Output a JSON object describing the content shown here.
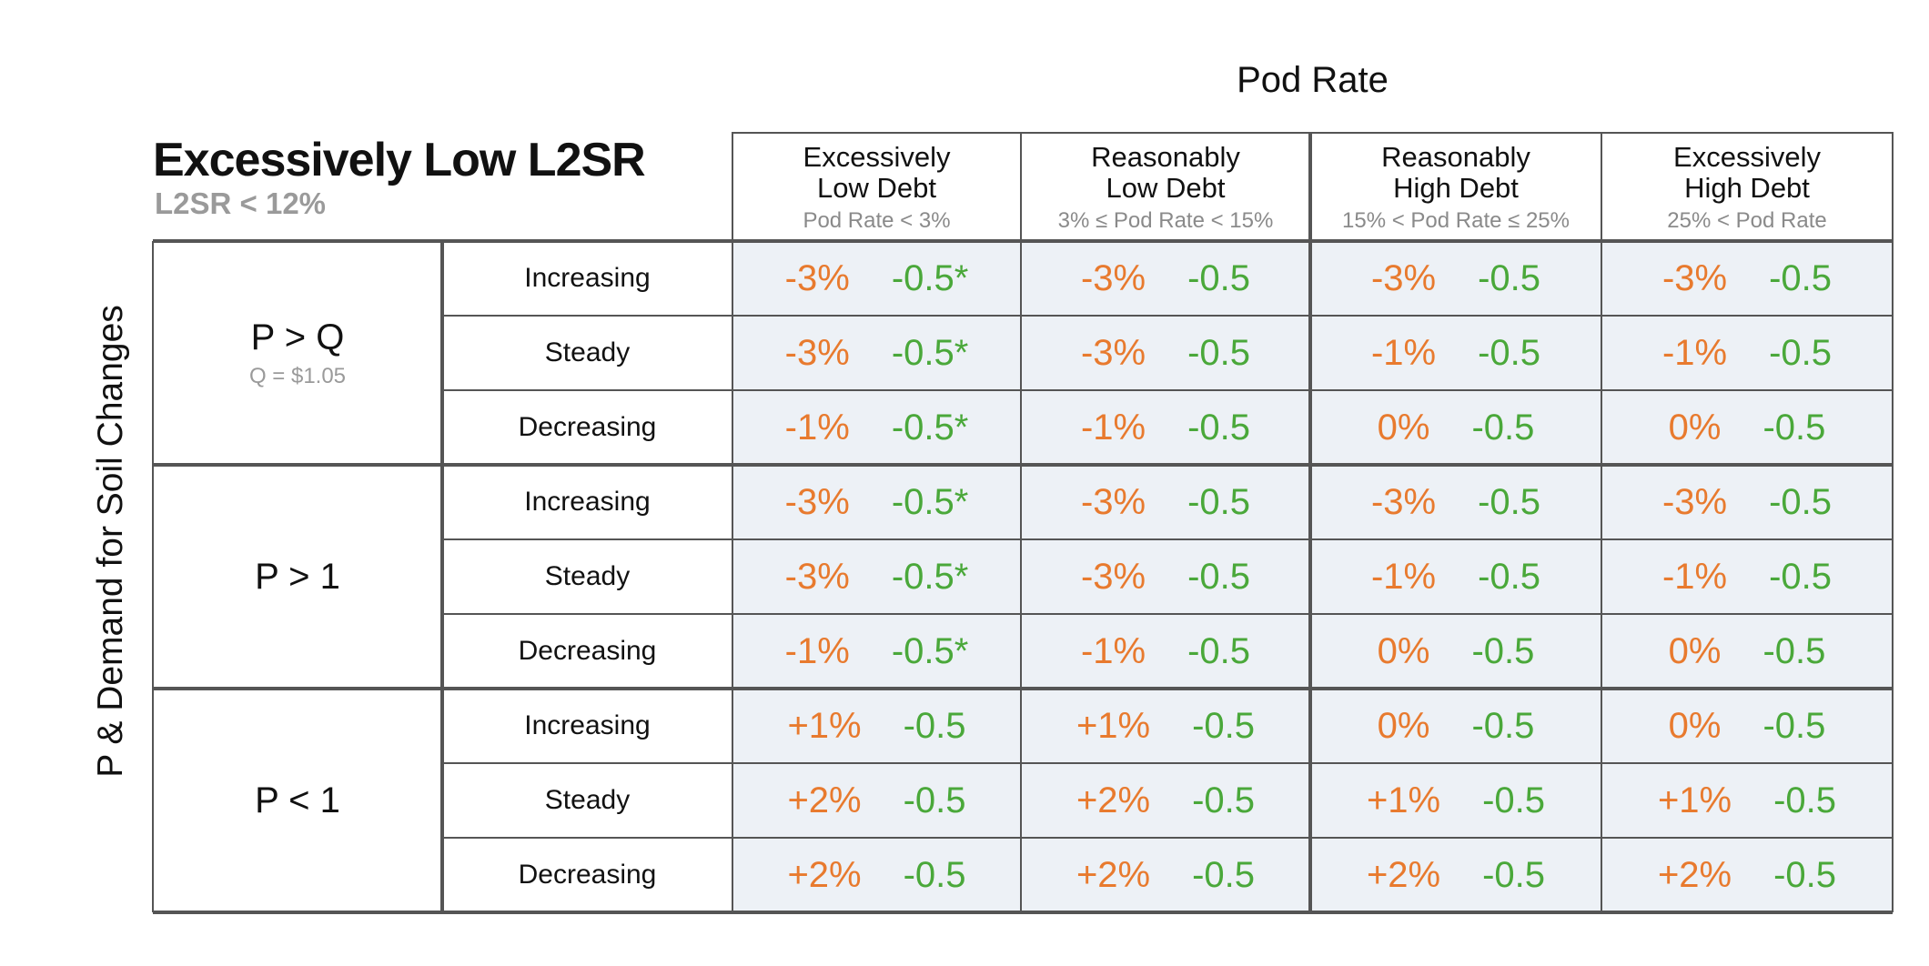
{
  "title": "Excessively Low L2SR",
  "subtitle": "L2SR < 12%",
  "column_axis_title": "Pod Rate",
  "row_axis_title": "P & Demand for Soil Changes",
  "colors": {
    "percent": "#e87a2e",
    "value": "#4aa83a",
    "cell_shade": "#edf1f6"
  },
  "chart_data": {
    "type": "table",
    "columns": [
      {
        "line1": "Excessively",
        "line2": "Low Debt",
        "condition": "Pod Rate < 3%"
      },
      {
        "line1": "Reasonably",
        "line2": "Low Debt",
        "condition": "3% ≤ Pod Rate < 15%"
      },
      {
        "line1": "Reasonably",
        "line2": "High Debt",
        "condition": "15% < Pod Rate ≤ 25%"
      },
      {
        "line1": "Excessively",
        "line2": "High Debt",
        "condition": "25% < Pod Rate"
      }
    ],
    "groups": [
      {
        "label": "P > Q",
        "sublabel": "Q = $1.05"
      },
      {
        "label": "P > 1",
        "sublabel": ""
      },
      {
        "label": "P < 1",
        "sublabel": ""
      }
    ],
    "rows": [
      {
        "group": 0,
        "trend": "Increasing",
        "cells": [
          [
            "-3%",
            "-0.5*"
          ],
          [
            "-3%",
            "-0.5"
          ],
          [
            "-3%",
            "-0.5"
          ],
          [
            "-3%",
            "-0.5"
          ]
        ]
      },
      {
        "group": 0,
        "trend": "Steady",
        "cells": [
          [
            "-3%",
            "-0.5*"
          ],
          [
            "-3%",
            "-0.5"
          ],
          [
            "-1%",
            "-0.5"
          ],
          [
            "-1%",
            "-0.5"
          ]
        ]
      },
      {
        "group": 0,
        "trend": "Decreasing",
        "cells": [
          [
            "-1%",
            "-0.5*"
          ],
          [
            "-1%",
            "-0.5"
          ],
          [
            "0%",
            "-0.5"
          ],
          [
            "0%",
            "-0.5"
          ]
        ]
      },
      {
        "group": 1,
        "trend": "Increasing",
        "cells": [
          [
            "-3%",
            "-0.5*"
          ],
          [
            "-3%",
            "-0.5"
          ],
          [
            "-3%",
            "-0.5"
          ],
          [
            "-3%",
            "-0.5"
          ]
        ]
      },
      {
        "group": 1,
        "trend": "Steady",
        "cells": [
          [
            "-3%",
            "-0.5*"
          ],
          [
            "-3%",
            "-0.5"
          ],
          [
            "-1%",
            "-0.5"
          ],
          [
            "-1%",
            "-0.5"
          ]
        ]
      },
      {
        "group": 1,
        "trend": "Decreasing",
        "cells": [
          [
            "-1%",
            "-0.5*"
          ],
          [
            "-1%",
            "-0.5"
          ],
          [
            "0%",
            "-0.5"
          ],
          [
            "0%",
            "-0.5"
          ]
        ]
      },
      {
        "group": 2,
        "trend": "Increasing",
        "cells": [
          [
            "+1%",
            "-0.5"
          ],
          [
            "+1%",
            "-0.5"
          ],
          [
            "0%",
            "-0.5"
          ],
          [
            "0%",
            "-0.5"
          ]
        ]
      },
      {
        "group": 2,
        "trend": "Steady",
        "cells": [
          [
            "+2%",
            "-0.5"
          ],
          [
            "+2%",
            "-0.5"
          ],
          [
            "+1%",
            "-0.5"
          ],
          [
            "+1%",
            "-0.5"
          ]
        ]
      },
      {
        "group": 2,
        "trend": "Decreasing",
        "cells": [
          [
            "+2%",
            "-0.5"
          ],
          [
            "+2%",
            "-0.5"
          ],
          [
            "+2%",
            "-0.5"
          ],
          [
            "+2%",
            "-0.5"
          ]
        ]
      }
    ]
  }
}
